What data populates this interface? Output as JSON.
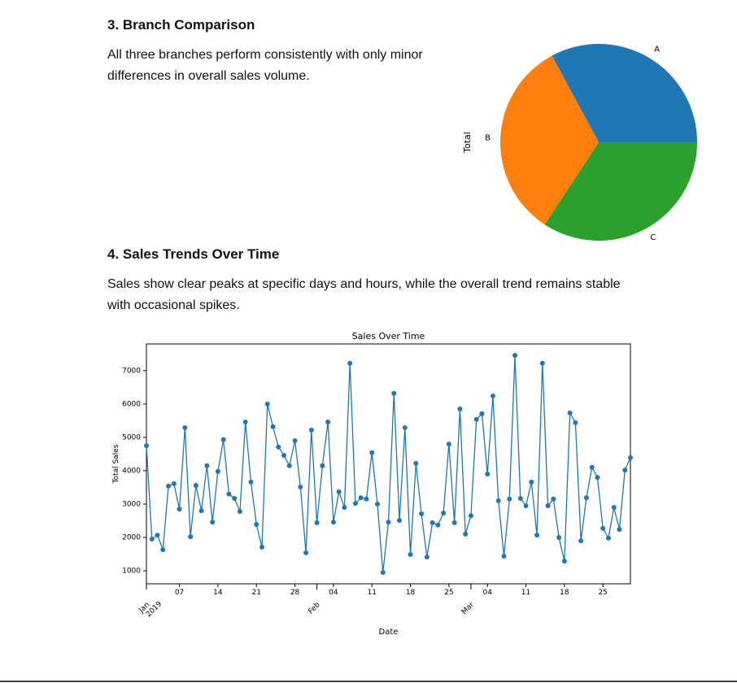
{
  "sections": [
    {
      "heading": "3. Branch Comparison",
      "paragraph": "All three branches perform consistently with only minor differences in overall sales volume."
    },
    {
      "heading": "4. Sales Trends Over Time",
      "paragraph": "Sales show clear peaks at specific days and hours, while the overall trend remains stable with occasional spikes."
    }
  ],
  "chart_data": [
    {
      "type": "pie",
      "y_label": "Total",
      "categories": [
        "A",
        "B",
        "C"
      ],
      "values": [
        106200.37,
        106197.67,
        110568.71
      ],
      "colors": [
        "#1f77b4",
        "#ff7f0e",
        "#2ca02c"
      ]
    },
    {
      "type": "line",
      "title": "Sales Over Time",
      "x_label": "Date",
      "y_label": "Total Sales",
      "color": "#1f77b4",
      "x": [
        "2019-01-01",
        "2019-01-02",
        "2019-01-03",
        "2019-01-04",
        "2019-01-05",
        "2019-01-06",
        "2019-01-07",
        "2019-01-08",
        "2019-01-09",
        "2019-01-10",
        "2019-01-11",
        "2019-01-12",
        "2019-01-13",
        "2019-01-14",
        "2019-01-15",
        "2019-01-16",
        "2019-01-17",
        "2019-01-18",
        "2019-01-19",
        "2019-01-20",
        "2019-01-21",
        "2019-01-22",
        "2019-01-23",
        "2019-01-24",
        "2019-01-25",
        "2019-01-26",
        "2019-01-27",
        "2019-01-28",
        "2019-01-29",
        "2019-01-30",
        "2019-01-31",
        "2019-02-01",
        "2019-02-02",
        "2019-02-03",
        "2019-02-04",
        "2019-02-05",
        "2019-02-06",
        "2019-02-07",
        "2019-02-08",
        "2019-02-09",
        "2019-02-10",
        "2019-02-11",
        "2019-02-12",
        "2019-02-13",
        "2019-02-14",
        "2019-02-15",
        "2019-02-16",
        "2019-02-17",
        "2019-02-18",
        "2019-02-19",
        "2019-02-20",
        "2019-02-21",
        "2019-02-22",
        "2019-02-23",
        "2019-02-24",
        "2019-02-25",
        "2019-02-26",
        "2019-02-27",
        "2019-02-28",
        "2019-03-01",
        "2019-03-02",
        "2019-03-03",
        "2019-03-04",
        "2019-03-05",
        "2019-03-06",
        "2019-03-07",
        "2019-03-08",
        "2019-03-09",
        "2019-03-10",
        "2019-03-11",
        "2019-03-12",
        "2019-03-13",
        "2019-03-14",
        "2019-03-15",
        "2019-03-16",
        "2019-03-17",
        "2019-03-18",
        "2019-03-19",
        "2019-03-20",
        "2019-03-21",
        "2019-03-22",
        "2019-03-23",
        "2019-03-24",
        "2019-03-25",
        "2019-03-26",
        "2019-03-27",
        "2019-03-28",
        "2019-03-29",
        "2019-03-30"
      ],
      "values": [
        4750,
        1950,
        2070,
        1630,
        3540,
        3610,
        2850,
        5290,
        2020,
        3560,
        2800,
        4150,
        2460,
        3980,
        4930,
        3300,
        3170,
        2780,
        5460,
        3660,
        2390,
        1710,
        6000,
        5320,
        4710,
        4460,
        4150,
        4900,
        3510,
        1540,
        5220,
        2440,
        4150,
        5460,
        2460,
        3370,
        2900,
        7220,
        3020,
        3190,
        3150,
        4540,
        3000,
        950,
        2460,
        6320,
        2510,
        5290,
        1490,
        4220,
        2710,
        1410,
        2440,
        2370,
        2730,
        4800,
        2440,
        5850,
        2100,
        2650,
        5540,
        5710,
        3900,
        6240,
        3100,
        1440,
        3150,
        7460,
        3170,
        2950,
        3660,
        2070,
        7220,
        2950,
        3150,
        2000,
        1290,
        5730,
        5440,
        1900,
        3190,
        4100,
        3800,
        2270,
        1980,
        2900,
        2240,
        4020,
        4390
      ],
      "xlim": [
        "2019-01-01",
        "2019-03-30"
      ],
      "xticks": [
        {
          "value": "2019-01-01",
          "label": "Jan\n2019"
        },
        {
          "value": "2019-01-07",
          "label": "07"
        },
        {
          "value": "2019-01-14",
          "label": "14"
        },
        {
          "value": "2019-01-21",
          "label": "21"
        },
        {
          "value": "2019-01-28",
          "label": "28"
        },
        {
          "value": "2019-02-01",
          "label": "Feb"
        },
        {
          "value": "2019-02-04",
          "label": "04"
        },
        {
          "value": "2019-02-11",
          "label": "11"
        },
        {
          "value": "2019-02-18",
          "label": "18"
        },
        {
          "value": "2019-02-25",
          "label": "25"
        },
        {
          "value": "2019-03-01",
          "label": "Mar"
        },
        {
          "value": "2019-03-04",
          "label": "04"
        },
        {
          "value": "2019-03-11",
          "label": "11"
        },
        {
          "value": "2019-03-18",
          "label": "18"
        },
        {
          "value": "2019-03-25",
          "label": "25"
        }
      ],
      "ylim": [
        610,
        7800
      ],
      "yticks": [
        1000,
        2000,
        3000,
        4000,
        5000,
        6000,
        7000
      ],
      "markers": true
    }
  ]
}
